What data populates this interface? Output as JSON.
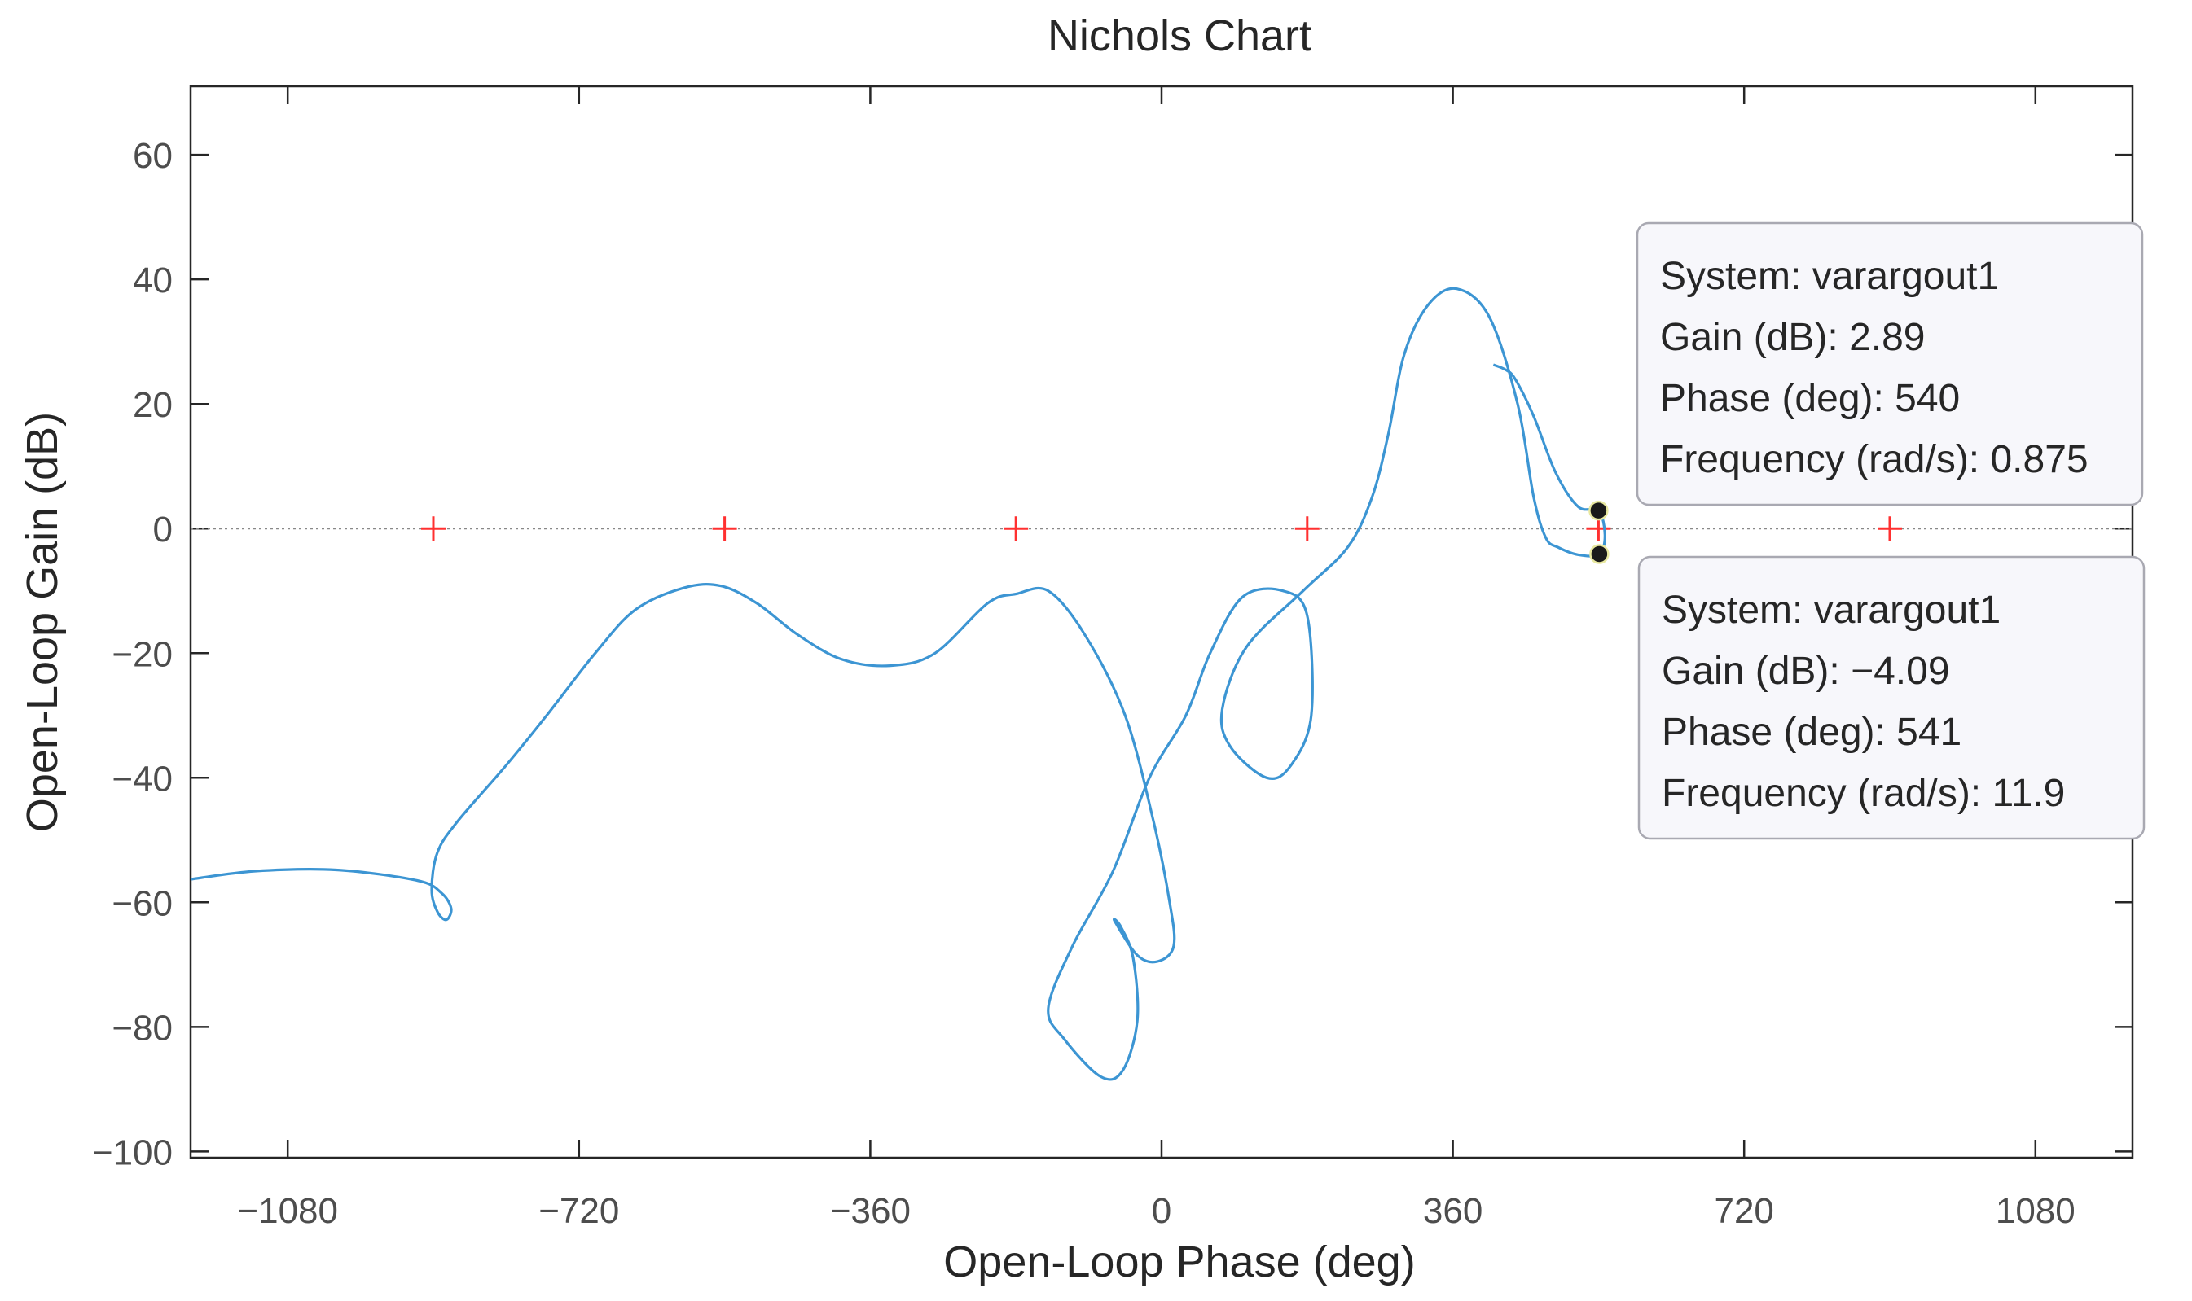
{
  "chart_data": {
    "type": "line",
    "title": "Nichols Chart",
    "xlabel": "Open-Loop Phase (deg)",
    "ylabel": "Open-Loop Gain (dB)",
    "xlim": [
      -1200,
      1200
    ],
    "ylim": [
      -101,
      71
    ],
    "xticks": [
      -1080,
      -720,
      -360,
      0,
      360,
      720,
      1080
    ],
    "yticks": [
      -100,
      -80,
      -60,
      -40,
      -20,
      0,
      20,
      40,
      60
    ],
    "xtick_labels": [
      "−1080",
      "−720",
      "−360",
      "0",
      "360",
      "720",
      "1080"
    ],
    "ytick_labels": [
      "−100",
      "−80",
      "−60",
      "−40",
      "−20",
      "0",
      "20",
      "40",
      "60"
    ],
    "grid": false,
    "zero_line": 0,
    "critical_points": [
      -900,
      -540,
      -180,
      180,
      540,
      900
    ],
    "series": [
      {
        "color": "#3c95d3",
        "points": [
          [
            -1200,
            -56.3
          ],
          [
            -1120,
            -55
          ],
          [
            -1020,
            -54.8
          ],
          [
            -920,
            -56.5
          ],
          [
            -890,
            -58.5
          ],
          [
            -878,
            -61
          ],
          [
            -884,
            -62.8
          ],
          [
            -895,
            -61.5
          ],
          [
            -902,
            -58
          ],
          [
            -895,
            -52
          ],
          [
            -870,
            -47
          ],
          [
            -810,
            -38
          ],
          [
            -760,
            -30
          ],
          [
            -700,
            -20
          ],
          [
            -650,
            -13
          ],
          [
            -590,
            -9.5
          ],
          [
            -545,
            -9.2
          ],
          [
            -500,
            -12
          ],
          [
            -450,
            -17
          ],
          [
            -395,
            -21
          ],
          [
            -335,
            -22
          ],
          [
            -280,
            -20
          ],
          [
            -215,
            -12
          ],
          [
            -180,
            -10.5
          ],
          [
            -140,
            -10
          ],
          [
            -95,
            -17
          ],
          [
            -45,
            -30
          ],
          [
            -10,
            -47
          ],
          [
            10,
            -60
          ],
          [
            15,
            -67
          ],
          [
            -5,
            -69.5
          ],
          [
            -30,
            -68.5
          ],
          [
            -58,
            -63
          ],
          [
            -50,
            -64
          ],
          [
            -35,
            -69
          ],
          [
            -30,
            -79
          ],
          [
            -48,
            -87
          ],
          [
            -75,
            -88
          ],
          [
            -120,
            -82
          ],
          [
            -140,
            -77
          ],
          [
            -110,
            -67
          ],
          [
            -60,
            -55
          ],
          [
            -15,
            -40
          ],
          [
            30,
            -30
          ],
          [
            60,
            -20
          ],
          [
            100,
            -11
          ],
          [
            150,
            -10
          ],
          [
            180,
            -14
          ],
          [
            185,
            -30
          ],
          [
            160,
            -38
          ],
          [
            130,
            -40
          ],
          [
            85,
            -35
          ],
          [
            75,
            -29
          ],
          [
            105,
            -19
          ],
          [
            175,
            -10
          ],
          [
            230,
            -3
          ],
          [
            260,
            5
          ],
          [
            280,
            15
          ],
          [
            300,
            28
          ],
          [
            330,
            36
          ],
          [
            365,
            38.5
          ],
          [
            405,
            34
          ],
          [
            440,
            20
          ],
          [
            460,
            5
          ],
          [
            475,
            -1.5
          ],
          [
            490,
            -3
          ],
          [
            515,
            -4.2
          ],
          [
            541,
            -4.09
          ],
          [
            548,
            -1
          ],
          [
            540,
            2.89
          ],
          [
            515,
            3.5
          ],
          [
            487,
            9
          ],
          [
            460,
            18
          ],
          [
            437,
            24
          ],
          [
            425,
            25.5
          ],
          [
            410,
            26.3
          ]
        ]
      }
    ],
    "datatips": [
      {
        "phase": 540,
        "gain": 2.89,
        "lines": [
          "System: varargout1",
          "Gain (dB): 2.89",
          "Phase (deg): 540",
          "Frequency (rad/s): 0.875"
        ]
      },
      {
        "phase": 541,
        "gain": -4.09,
        "lines": [
          "System: varargout1",
          "Gain (dB): −4.09",
          "Phase (deg): 541",
          "Frequency (rad/s): 11.9"
        ]
      }
    ]
  }
}
